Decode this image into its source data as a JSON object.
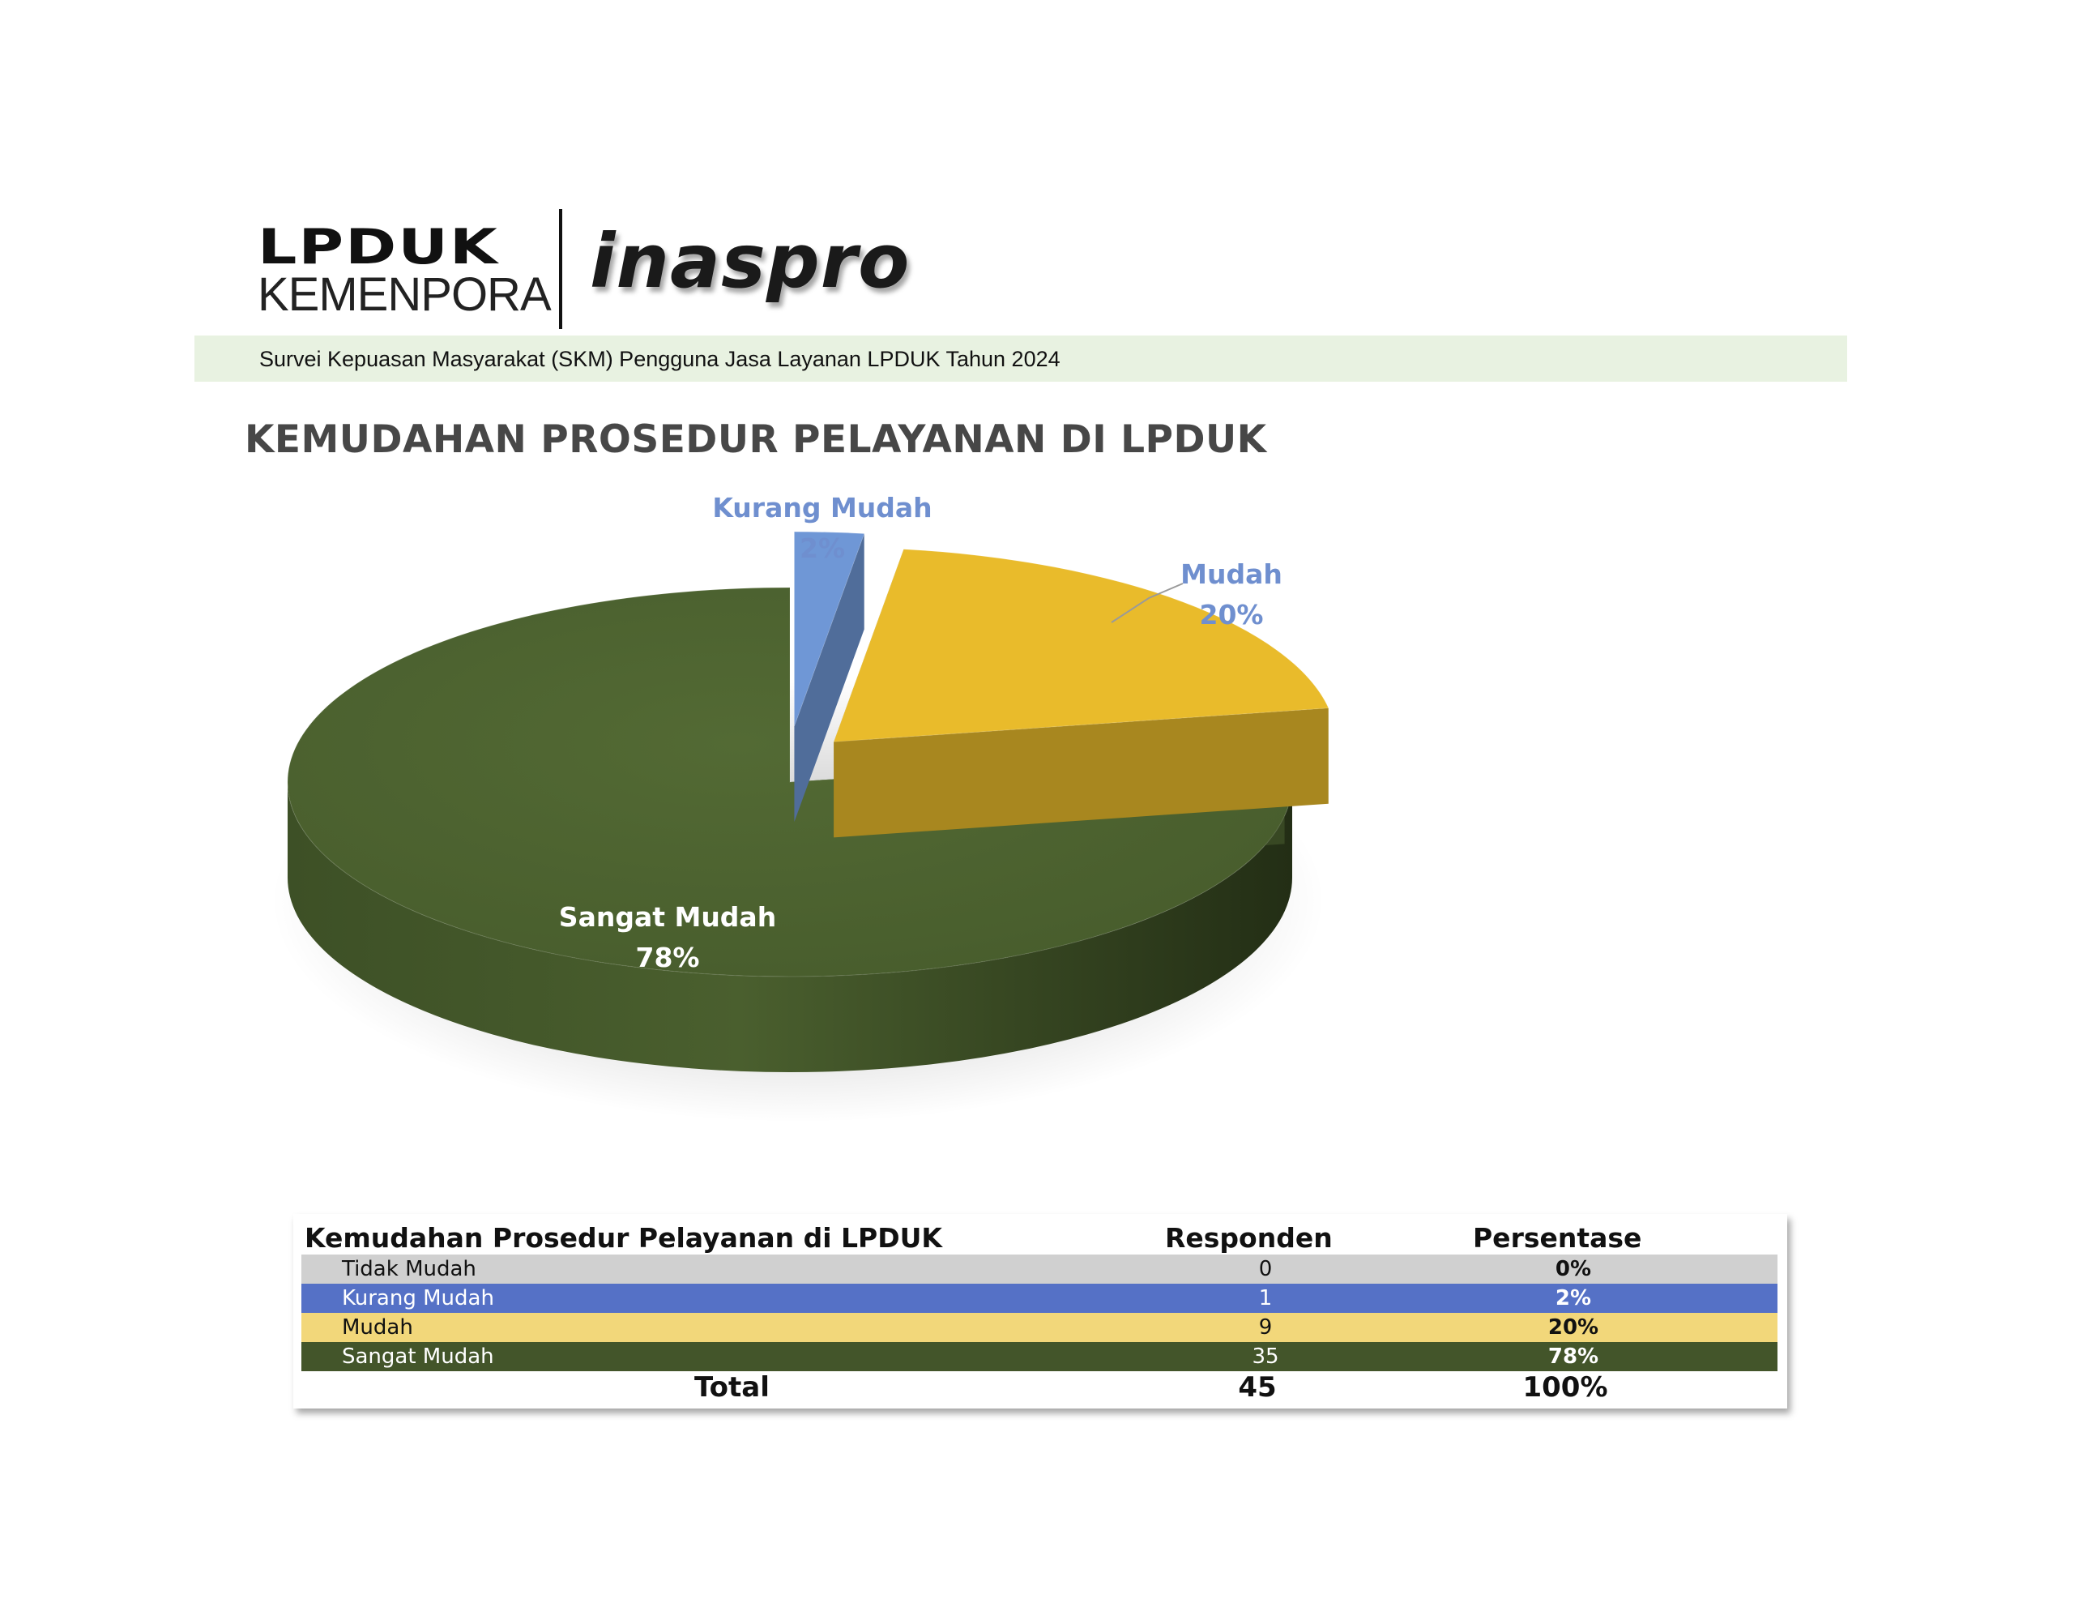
{
  "header": {
    "logo_lpduk_line1": "LPDUK",
    "logo_lpduk_line2": "KEMENPORA",
    "logo_inaspro": "inaspro",
    "subtitle": "Survei Kepuasan Masyarakat (SKM) Pengguna Jasa Layanan LPDUK Tahun 2024"
  },
  "page_title": "KEMUDAHAN PROSEDUR PELAYANAN DI LPDUK",
  "chart_data": {
    "type": "pie",
    "style": "3d-exploded",
    "categories": [
      "Tidak Mudah",
      "Kurang Mudah",
      "Mudah",
      "Sangat Mudah"
    ],
    "values": [
      0,
      1,
      9,
      35
    ],
    "percent_labels": [
      "0%",
      "2%",
      "20%",
      "78%"
    ],
    "colors": [
      "#c8c8c8",
      "#6f97d6",
      "#e9bb2b",
      "#4e6431"
    ],
    "shown_labels": [
      {
        "name": "Kurang Mudah",
        "percent": "2%"
      },
      {
        "name": "Mudah",
        "percent": "20%"
      },
      {
        "name": "Sangat Mudah",
        "percent": "78%"
      }
    ]
  },
  "table": {
    "header_label": "Kemudahan Prosedur Pelayanan di LPDUK",
    "header_responden": "Responden",
    "header_persentase": "Persentase",
    "rows": [
      {
        "label": "Tidak Mudah",
        "responden": "0",
        "persentase": "0%",
        "bg": "#d0d0d0",
        "fg": "#111111"
      },
      {
        "label": "Kurang Mudah",
        "responden": "1",
        "persentase": "2%",
        "bg": "#5571c6",
        "fg": "#ffffff"
      },
      {
        "label": "Mudah",
        "responden": "9",
        "persentase": "20%",
        "bg": "#f2d77a",
        "fg": "#111111"
      },
      {
        "label": "Sangat Mudah",
        "responden": "35",
        "persentase": "78%",
        "bg": "#43552a",
        "fg": "#ffffff"
      }
    ],
    "total_label": "Total",
    "total_responden": "45",
    "total_persentase": "100%"
  }
}
